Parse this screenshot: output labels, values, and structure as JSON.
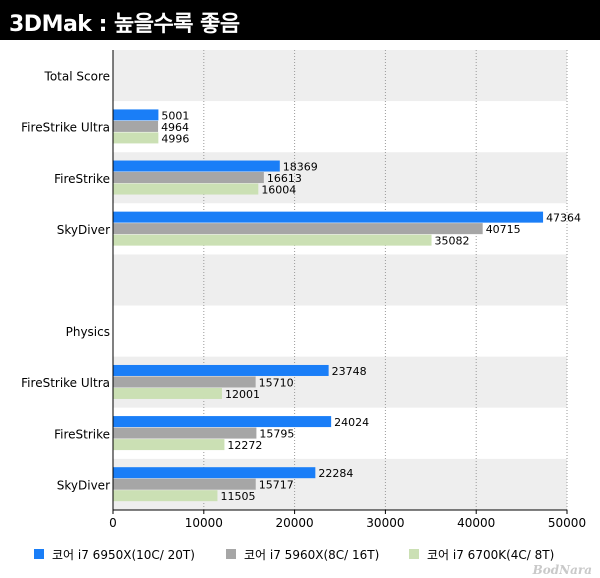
{
  "header": {
    "title": "3DMak : 높을수록 좋음"
  },
  "watermark": "BodNara",
  "colors": {
    "series1": "#1a7ef7",
    "series2": "#a6a6a6",
    "series3": "#cbe0b4"
  },
  "chart_data": {
    "type": "bar",
    "orientation": "horizontal",
    "categories": [
      "Total Score",
      "FireStrike Ultra",
      "FireStrike",
      "SkyDiver",
      "",
      "Physics",
      "FireStrike Ultra",
      "FireStrike",
      "SkyDiver"
    ],
    "series": [
      {
        "name": "코어 i7 6950X(10C/ 20T)",
        "values": [
          null,
          5001,
          18369,
          47364,
          null,
          null,
          23748,
          24024,
          22284
        ]
      },
      {
        "name": "코어 i7 5960X(8C/ 16T)",
        "values": [
          null,
          4964,
          16613,
          40715,
          null,
          null,
          15710,
          15795,
          15717
        ]
      },
      {
        "name": "코어 i7 6700K(4C/ 8T)",
        "values": [
          null,
          4996,
          16004,
          35082,
          null,
          null,
          12001,
          12272,
          11505
        ]
      }
    ],
    "xlim": [
      0,
      50000
    ],
    "xticks": [
      0,
      10000,
      20000,
      30000,
      40000,
      50000
    ],
    "grid": true,
    "legend": "bottom"
  }
}
